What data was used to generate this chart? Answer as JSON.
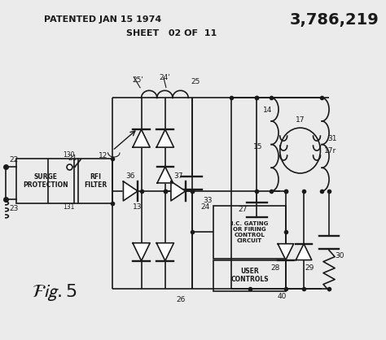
{
  "bg_color": "#ebebeb",
  "line_color": "#1a1a1a",
  "title_left": "PATENTED JAN 15 1974",
  "title_right": "3,786,219",
  "sheet_label": "SHEET   02 OF  11",
  "figsize": [
    4.74,
    4.18
  ],
  "dpi": 100
}
